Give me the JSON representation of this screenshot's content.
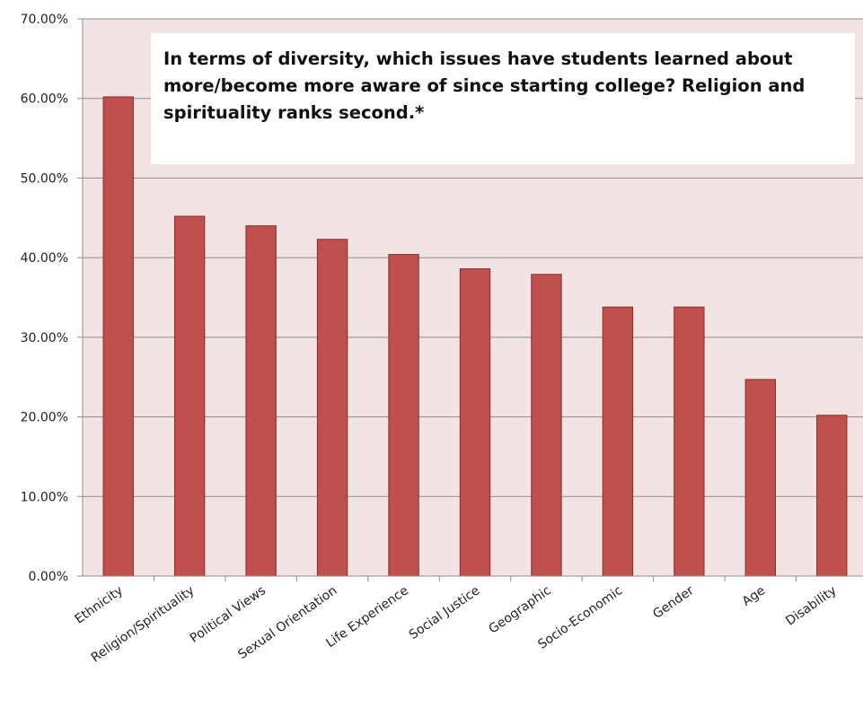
{
  "chart_data": {
    "type": "bar",
    "title": "In terms of diversity, which issues have students learned about more/become more aware of since starting college? Religion and spirituality ranks second.*",
    "xlabel": "",
    "ylabel": "",
    "ylim": [
      0,
      70
    ],
    "yticks": [
      "0.00%",
      "10.00%",
      "20.00%",
      "30.00%",
      "40.00%",
      "50.00%",
      "60.00%",
      "70.00%"
    ],
    "categories": [
      "Ethnicity",
      "Religion/Spirituality",
      "Political Views",
      "Sexual Orientation",
      "Life Experience",
      "Social Justice",
      "Geographic",
      "Socio-Economic",
      "Gender",
      "Age",
      "Disability"
    ],
    "values": [
      60.2,
      45.2,
      44.0,
      42.3,
      40.4,
      38.6,
      37.9,
      33.8,
      33.8,
      24.7,
      20.2
    ],
    "grid": true,
    "colors": {
      "bar": "#c0504d",
      "bar_edge": "#8c2b28",
      "plot_bg": "#f2e4e4",
      "grid": "#8c8c8c",
      "axis": "#8c8c8c"
    }
  }
}
